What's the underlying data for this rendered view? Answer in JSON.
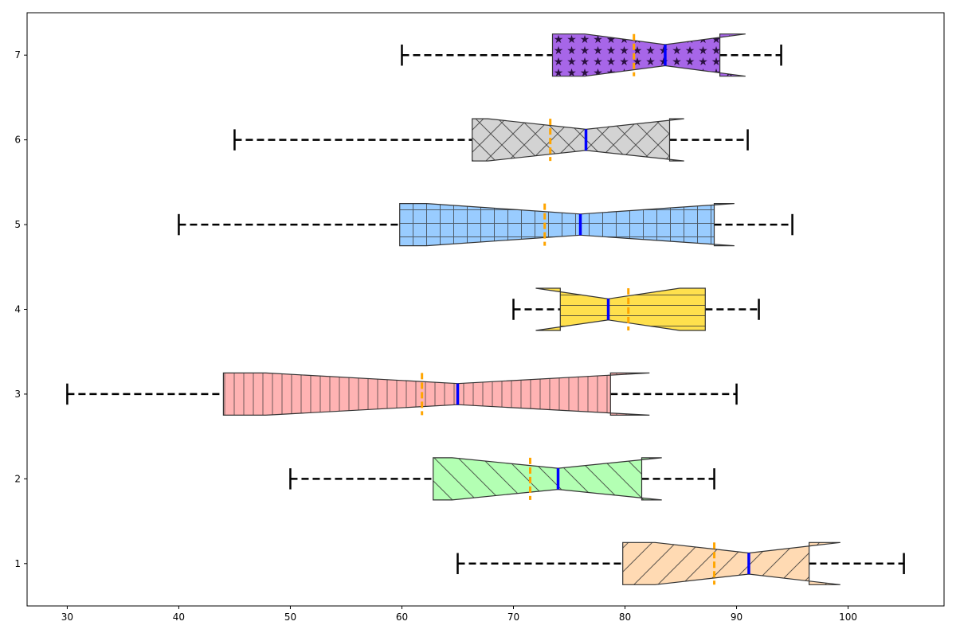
{
  "chart_data": {
    "type": "box",
    "orientation": "horizontal",
    "notched": true,
    "title": "",
    "xlabel": "",
    "ylabel": "",
    "xlim": [
      26.4,
      108.6
    ],
    "ylim": [
      0.5,
      7.5
    ],
    "x_ticks": [
      30,
      40,
      50,
      60,
      70,
      80,
      90,
      100
    ],
    "y_ticks": [
      1,
      2,
      3,
      4,
      5,
      6,
      7
    ],
    "grid": false,
    "median_color": "#0000ff",
    "mean_color": "#ffa500",
    "whisker_color": "#000000",
    "boxes": [
      {
        "position": 1,
        "whisker_low": 65,
        "q1": 79.8,
        "notch_low": 82.7,
        "median": 91.1,
        "notch_high": 99.3,
        "q3": 96.5,
        "whisker_high": 105,
        "mean": 88.0,
        "fill": "#ffdab3",
        "hatch": "diagonal-forward"
      },
      {
        "position": 2,
        "whisker_low": 50,
        "q1": 62.8,
        "notch_low": 64.5,
        "median": 74.0,
        "notch_high": 83.3,
        "q3": 81.5,
        "whisker_high": 88,
        "mean": 71.5,
        "fill": "#b3ffb3",
        "hatch": "diagonal-back"
      },
      {
        "position": 3,
        "whisker_low": 30,
        "q1": 44.0,
        "notch_low": 47.8,
        "median": 65.0,
        "notch_high": 82.2,
        "q3": 78.7,
        "whisker_high": 90,
        "mean": 61.8,
        "fill": "#ffb3b3",
        "hatch": "vertical"
      },
      {
        "position": 4,
        "whisker_low": 70,
        "q1": 74.2,
        "notch_low": 72.0,
        "median": 78.5,
        "notch_high": 84.9,
        "q3": 87.2,
        "whisker_high": 92,
        "mean": 80.3,
        "fill": "#ffe04d",
        "hatch": "horizontal"
      },
      {
        "position": 5,
        "whisker_low": 40,
        "q1": 59.8,
        "notch_low": 62.2,
        "median": 76.0,
        "notch_high": 89.8,
        "q3": 88.0,
        "whisker_high": 95,
        "mean": 72.8,
        "fill": "#99ccff",
        "hatch": "grid"
      },
      {
        "position": 6,
        "whisker_low": 45,
        "q1": 66.3,
        "notch_low": 67.7,
        "median": 76.5,
        "notch_high": 85.3,
        "q3": 84.0,
        "whisker_high": 91,
        "mean": 73.3,
        "fill": "#d3d3d3",
        "hatch": "crosshatch"
      },
      {
        "position": 7,
        "whisker_low": 60,
        "q1": 73.5,
        "notch_low": 76.4,
        "median": 83.6,
        "notch_high": 90.8,
        "q3": 88.5,
        "whisker_high": 94,
        "mean": 80.8,
        "fill": "#a766e8",
        "hatch": "stars"
      }
    ]
  }
}
